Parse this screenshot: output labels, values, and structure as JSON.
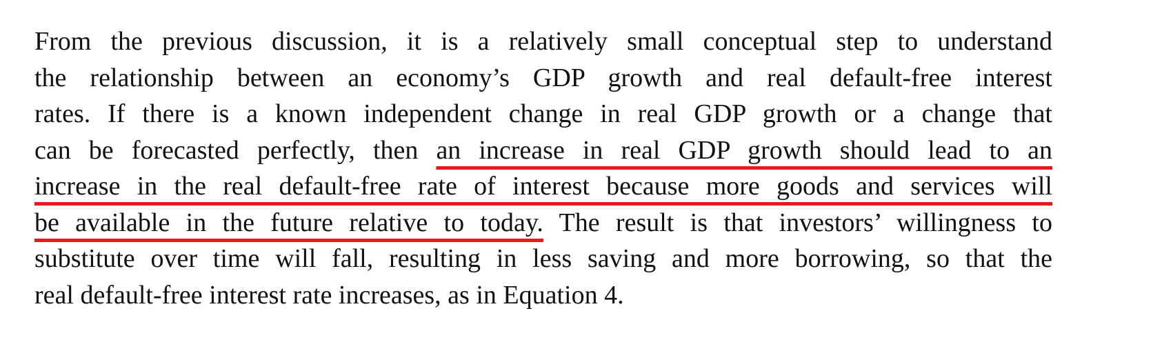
{
  "paragraph": {
    "lines": [
      [
        {
          "text": "From the previous discussion, it is a relatively small conceptual step to understand",
          "underline": false
        }
      ],
      [
        {
          "text": "the relationship between an economy’s GDP growth and real default-free interest",
          "underline": false
        }
      ],
      [
        {
          "text": "rates. If there is a known independent change in real GDP growth or a change that",
          "underline": false
        }
      ],
      [
        {
          "text": "can be forecasted perfectly, then ",
          "underline": false
        },
        {
          "text": "an increase in real GDP growth should lead to an",
          "underline": true
        }
      ],
      [
        {
          "text": "increase in the real default-free rate of interest because more goods and services will",
          "underline": true
        }
      ],
      [
        {
          "text": "be available in the future relative to today.",
          "underline": true
        },
        {
          "text": " The result is that investors’ willingness to",
          "underline": false
        }
      ],
      [
        {
          "text": "substitute over time will fall, resulting in less saving and more borrowing, so that the",
          "underline": false
        }
      ],
      [
        {
          "text": "real default-free interest rate increases, as in Equation 4.",
          "underline": false
        }
      ]
    ]
  }
}
